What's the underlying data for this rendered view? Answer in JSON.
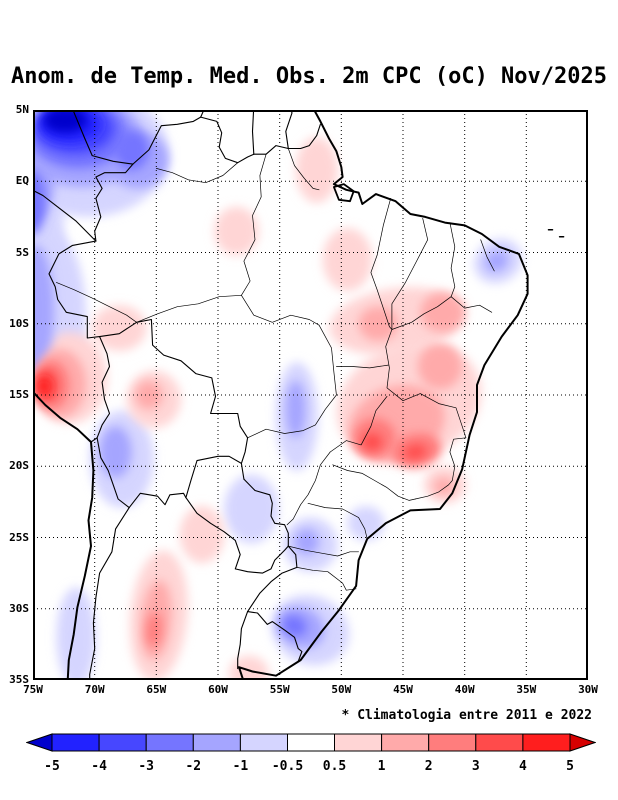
{
  "title": "Anom. de Temp. Med. Obs. 2m CPC (oC) Nov/2025",
  "footnote": "* Climatologia entre 2011 e 2022",
  "map": {
    "lat_ticks": [
      "5N",
      "EQ",
      "5S",
      "10S",
      "15S",
      "20S",
      "25S",
      "30S",
      "35S"
    ],
    "lon_ticks": [
      "75W",
      "70W",
      "65W",
      "60W",
      "55W",
      "50W",
      "45W",
      "40W",
      "35W",
      "30W"
    ]
  },
  "colorbar": {
    "labels": [
      "-5",
      "-4",
      "-3",
      "-2",
      "-1",
      "-0.5",
      "0.5",
      "1",
      "2",
      "3",
      "4",
      "5"
    ],
    "colors": [
      "#0000cc",
      "#2222ff",
      "#4747ff",
      "#7575ff",
      "#a5a5ff",
      "#d5d5ff",
      "#ffffff",
      "#ffd5d5",
      "#ffaaaa",
      "#ff7d7d",
      "#ff4b4b",
      "#ff1e1e",
      "#d60000"
    ]
  },
  "chart_data": {
    "type": "heatmap",
    "title": "Anom. de Temp. Med. Obs. 2m CPC (oC) Nov/2025",
    "units": "oC",
    "period": "Nov/2025",
    "region": "South America (75W-30W, 5N-35S)",
    "levels": [
      -5,
      -4,
      -3,
      -2,
      -1,
      -0.5,
      0.5,
      1,
      2,
      3,
      4,
      5
    ],
    "anomaly_regions": [
      {
        "lon": -70.5,
        "lat": 2.0,
        "rx_deg": 6.5,
        "ry_deg": 4.5,
        "rot": 0,
        "value": -0.7
      },
      {
        "lon": -73.5,
        "lat": -9.5,
        "rx_deg": 2.8,
        "ry_deg": 6.0,
        "rot": 0,
        "value": -0.7
      },
      {
        "lon": -74.5,
        "lat": -3.5,
        "rx_deg": 2.0,
        "ry_deg": 5.0,
        "rot": 0,
        "value": -0.7
      },
      {
        "lon": -67.8,
        "lat": -19.5,
        "rx_deg": 2.6,
        "ry_deg": 3.4,
        "rot": 0,
        "value": -0.7
      },
      {
        "lon": -71.5,
        "lat": -32.0,
        "rx_deg": 1.6,
        "ry_deg": 3.5,
        "rot": 0,
        "value": -0.7
      },
      {
        "lon": -37.3,
        "lat": -5.6,
        "rx_deg": 2.0,
        "ry_deg": 1.5,
        "rot": -30,
        "value": -0.7
      },
      {
        "lon": -53.6,
        "lat": -16.5,
        "rx_deg": 1.7,
        "ry_deg": 3.8,
        "rot": 0,
        "value": -0.7
      },
      {
        "lon": -57.3,
        "lat": -23.0,
        "rx_deg": 2.2,
        "ry_deg": 2.4,
        "rot": 0,
        "value": -0.7
      },
      {
        "lon": -52.5,
        "lat": -25.5,
        "rx_deg": 2.2,
        "ry_deg": 1.9,
        "rot": 0,
        "value": -0.7
      },
      {
        "lon": -48.0,
        "lat": -24.0,
        "rx_deg": 1.5,
        "ry_deg": 1.2,
        "rot": 0,
        "value": -0.7
      },
      {
        "lon": -52.5,
        "lat": -31.5,
        "rx_deg": 3.2,
        "ry_deg": 2.4,
        "rot": 25,
        "value": -0.7
      },
      {
        "lon": -72.0,
        "lat": -13.8,
        "rx_deg": 3.0,
        "ry_deg": 3.2,
        "rot": 0,
        "value": 0.7
      },
      {
        "lon": -65.2,
        "lat": -15.3,
        "rx_deg": 2.2,
        "ry_deg": 2.0,
        "rot": 0,
        "value": 0.7
      },
      {
        "lon": -68.0,
        "lat": -10.3,
        "rx_deg": 2.2,
        "ry_deg": 1.6,
        "rot": 0,
        "value": 0.7
      },
      {
        "lon": -45.5,
        "lat": -9.8,
        "rx_deg": 5.5,
        "ry_deg": 2.3,
        "rot": -8,
        "value": 0.7
      },
      {
        "lon": -49.5,
        "lat": -5.5,
        "rx_deg": 2.0,
        "ry_deg": 2.2,
        "rot": 0,
        "value": 0.7
      },
      {
        "lon": -52.0,
        "lat": 0.8,
        "rx_deg": 1.7,
        "ry_deg": 2.3,
        "rot": 0,
        "value": 0.7
      },
      {
        "lon": -58.5,
        "lat": -3.5,
        "rx_deg": 1.8,
        "ry_deg": 1.7,
        "rot": 0,
        "value": 0.7
      },
      {
        "lon": -44.5,
        "lat": -15.5,
        "rx_deg": 6.0,
        "ry_deg": 4.0,
        "rot": -20,
        "value": 0.7
      },
      {
        "lon": -41.6,
        "lat": -21.3,
        "rx_deg": 1.7,
        "ry_deg": 1.3,
        "rot": 0,
        "value": 0.7
      },
      {
        "lon": -64.8,
        "lat": -30.5,
        "rx_deg": 2.3,
        "ry_deg": 4.6,
        "rot": 5,
        "value": 0.7
      },
      {
        "lon": -61.3,
        "lat": -24.8,
        "rx_deg": 1.8,
        "ry_deg": 2.0,
        "rot": 0,
        "value": 0.7
      },
      {
        "lon": -57.5,
        "lat": -34.5,
        "rx_deg": 1.6,
        "ry_deg": 1.2,
        "rot": 0,
        "value": 0.7
      },
      {
        "lon": -71.0,
        "lat": 2.8,
        "rx_deg": 5.0,
        "ry_deg": 3.2,
        "rot": 0,
        "value": -1.5
      },
      {
        "lon": -74.8,
        "lat": 0.5,
        "rx_deg": 1.6,
        "ry_deg": 3.2,
        "rot": 0,
        "value": -1.5
      },
      {
        "lon": -66.5,
        "lat": 1.5,
        "rx_deg": 2.5,
        "ry_deg": 2.0,
        "rot": 0,
        "value": -1.5
      },
      {
        "lon": -74.8,
        "lat": -9.0,
        "rx_deg": 1.5,
        "ry_deg": 4.5,
        "rot": 0,
        "value": -1.5
      },
      {
        "lon": -68.3,
        "lat": -19.0,
        "rx_deg": 1.3,
        "ry_deg": 1.8,
        "rot": 0,
        "value": -1.5
      },
      {
        "lon": -37.4,
        "lat": -5.6,
        "rx_deg": 1.0,
        "ry_deg": 0.7,
        "rot": -30,
        "value": -1.5
      },
      {
        "lon": -53.7,
        "lat": -16.0,
        "rx_deg": 0.8,
        "ry_deg": 2.0,
        "rot": 0,
        "value": -1.5
      },
      {
        "lon": -52.8,
        "lat": -25.3,
        "rx_deg": 1.0,
        "ry_deg": 0.9,
        "rot": 0,
        "value": -1.5
      },
      {
        "lon": -53.3,
        "lat": -31.3,
        "rx_deg": 2.0,
        "ry_deg": 1.4,
        "rot": 25,
        "value": -1.5
      },
      {
        "lon": -72.8,
        "lat": -14.2,
        "rx_deg": 2.1,
        "ry_deg": 2.4,
        "rot": 0,
        "value": 1.5
      },
      {
        "lon": -65.6,
        "lat": -15.0,
        "rx_deg": 1.1,
        "ry_deg": 1.0,
        "rot": 0,
        "value": 1.5
      },
      {
        "lon": -47.0,
        "lat": -10.0,
        "rx_deg": 1.6,
        "ry_deg": 1.2,
        "rot": 0,
        "value": 1.5
      },
      {
        "lon": -41.8,
        "lat": -9.2,
        "rx_deg": 1.8,
        "ry_deg": 1.4,
        "rot": 0,
        "value": 1.5
      },
      {
        "lon": -45.5,
        "lat": -17.0,
        "rx_deg": 4.0,
        "ry_deg": 2.6,
        "rot": -20,
        "value": 1.5
      },
      {
        "lon": -42.0,
        "lat": -13.0,
        "rx_deg": 1.8,
        "ry_deg": 1.6,
        "rot": 0,
        "value": 1.5
      },
      {
        "lon": -41.7,
        "lat": -21.4,
        "rx_deg": 0.8,
        "ry_deg": 0.6,
        "rot": 0,
        "value": 1.5
      },
      {
        "lon": -65.0,
        "lat": -30.8,
        "rx_deg": 1.2,
        "ry_deg": 2.8,
        "rot": 5,
        "value": 1.5
      },
      {
        "lon": -71.3,
        "lat": 3.3,
        "rx_deg": 4.0,
        "ry_deg": 2.4,
        "rot": 0,
        "value": -2.5
      },
      {
        "lon": -67.0,
        "lat": 2.2,
        "rx_deg": 1.4,
        "ry_deg": 1.4,
        "rot": 0,
        "value": -2.5
      },
      {
        "lon": -75.0,
        "lat": -1.5,
        "rx_deg": 1.0,
        "ry_deg": 2.2,
        "rot": 0,
        "value": -2.5
      },
      {
        "lon": -53.8,
        "lat": -31.2,
        "rx_deg": 1.0,
        "ry_deg": 0.7,
        "rot": 25,
        "value": -2.5
      },
      {
        "lon": -73.5,
        "lat": -14.3,
        "rx_deg": 1.4,
        "ry_deg": 1.7,
        "rot": 0,
        "value": 2.5
      },
      {
        "lon": -47.3,
        "lat": -18.0,
        "rx_deg": 1.7,
        "ry_deg": 1.4,
        "rot": 0,
        "value": 2.5
      },
      {
        "lon": -43.9,
        "lat": -18.9,
        "rx_deg": 2.0,
        "ry_deg": 1.2,
        "rot": -10,
        "value": 2.5
      },
      {
        "lon": -65.2,
        "lat": -31.5,
        "rx_deg": 0.6,
        "ry_deg": 1.2,
        "rot": 5,
        "value": 2.5
      },
      {
        "lon": -71.6,
        "lat": 3.7,
        "rx_deg": 3.2,
        "ry_deg": 1.8,
        "rot": 0,
        "value": -3.5
      },
      {
        "lon": -73.9,
        "lat": -14.3,
        "rx_deg": 0.9,
        "ry_deg": 1.1,
        "rot": 0,
        "value": 3.5
      },
      {
        "lon": -47.5,
        "lat": -18.3,
        "rx_deg": 0.8,
        "ry_deg": 0.6,
        "rot": 0,
        "value": 3.5
      },
      {
        "lon": -44.0,
        "lat": -19.0,
        "rx_deg": 0.9,
        "ry_deg": 0.5,
        "rot": -10,
        "value": 3.5
      },
      {
        "lon": -72.0,
        "lat": 4.0,
        "rx_deg": 2.5,
        "ry_deg": 1.3,
        "rot": 0,
        "value": -4.5
      },
      {
        "lon": -74.1,
        "lat": -14.4,
        "rx_deg": 0.5,
        "ry_deg": 0.65,
        "rot": 0,
        "value": 4.5
      },
      {
        "lon": -72.4,
        "lat": 4.3,
        "rx_deg": 1.8,
        "ry_deg": 0.9,
        "rot": 0,
        "value": -5.5
      }
    ]
  }
}
